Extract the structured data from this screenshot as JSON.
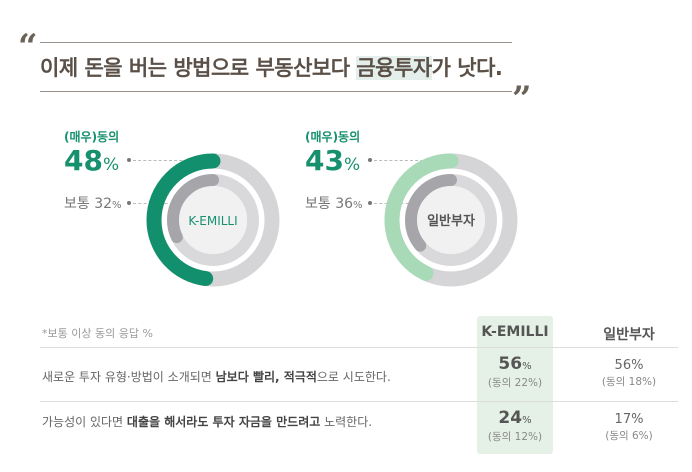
{
  "headline": {
    "pre": "이제 돈을 버는 방법으로 부동산보다 ",
    "highlight": "금융투자",
    "post": "가 낫다.",
    "open_quote": "“",
    "close_quote": "”"
  },
  "donuts": [
    {
      "name": "K-EMILLI",
      "agree_label": "(매우)동의",
      "agree_value": "48",
      "normal_label": "보통",
      "normal_value": "32",
      "pct": "%",
      "agree_pct": 48,
      "normal_pct": 32,
      "color": "#128f6d"
    },
    {
      "name": "일반부자",
      "agree_label": "(매우)동의",
      "agree_value": "43",
      "normal_label": "보통",
      "normal_value": "36",
      "pct": "%",
      "agree_pct": 43,
      "normal_pct": 36,
      "color": "#a8dab8"
    }
  ],
  "table": {
    "note": "*보통 이상 동의 응답 %",
    "headers": [
      "K-EMILLI",
      "일반부자"
    ],
    "rows": [
      {
        "text_pre": "새로운 투자 유형·방법이 소개되면 ",
        "text_bold": "남보다 빨리, 적극적",
        "text_post": "으로 시도한다.",
        "k_value": "56",
        "k_sub": "(동의 22%)",
        "g_value": "56%",
        "g_sub": "(동의 18%)"
      },
      {
        "text_pre": "가능성이 있다면 ",
        "text_bold": "대출을 해서라도 투자 자금을 만드려고",
        "text_post": " 노력한다.",
        "k_value": "24",
        "k_sub": "(동의 12%)",
        "g_value": "17%",
        "g_sub": "(동의 6%)"
      }
    ],
    "pct": "%"
  }
}
